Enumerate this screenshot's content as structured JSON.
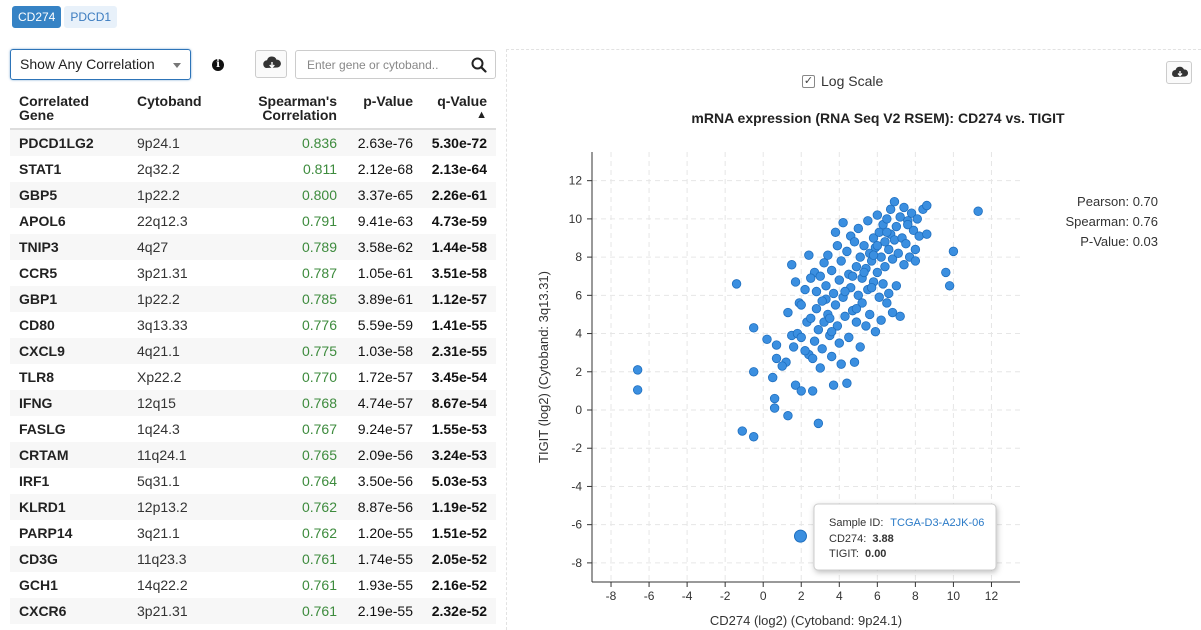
{
  "gene_tabs": [
    {
      "label": "CD274",
      "active": true
    },
    {
      "label": "PDCD1",
      "active": false
    }
  ],
  "toolbar": {
    "correlation_filter": "Show Any Correlation",
    "info_icon": "info-circle-icon",
    "download_icon": "cloud-download-icon",
    "search_placeholder": "Enter gene or cytoband..",
    "search_icon": "search-icon"
  },
  "table": {
    "headers": {
      "gene": "Correlated Gene",
      "cytoband": "Cytoband",
      "spearman": "Spearman's Correlation",
      "pvalue": "p-Value",
      "qvalue": "q-Value",
      "qvalue_sort": "▲"
    },
    "rows": [
      {
        "gene": "PDCD1LG2",
        "cytoband": "9p24.1",
        "spearman": "0.836",
        "pvalue": "2.63e-76",
        "qvalue": "5.30e-72"
      },
      {
        "gene": "STAT1",
        "cytoband": "2q32.2",
        "spearman": "0.811",
        "pvalue": "2.12e-68",
        "qvalue": "2.13e-64"
      },
      {
        "gene": "GBP5",
        "cytoband": "1p22.2",
        "spearman": "0.800",
        "pvalue": "3.37e-65",
        "qvalue": "2.26e-61"
      },
      {
        "gene": "APOL6",
        "cytoband": "22q12.3",
        "spearman": "0.791",
        "pvalue": "9.41e-63",
        "qvalue": "4.73e-59"
      },
      {
        "gene": "TNIP3",
        "cytoband": "4q27",
        "spearman": "0.789",
        "pvalue": "3.58e-62",
        "qvalue": "1.44e-58"
      },
      {
        "gene": "CCR5",
        "cytoband": "3p21.31",
        "spearman": "0.787",
        "pvalue": "1.05e-61",
        "qvalue": "3.51e-58"
      },
      {
        "gene": "GBP1",
        "cytoband": "1p22.2",
        "spearman": "0.785",
        "pvalue": "3.89e-61",
        "qvalue": "1.12e-57"
      },
      {
        "gene": "CD80",
        "cytoband": "3q13.33",
        "spearman": "0.776",
        "pvalue": "5.59e-59",
        "qvalue": "1.41e-55"
      },
      {
        "gene": "CXCL9",
        "cytoband": "4q21.1",
        "spearman": "0.775",
        "pvalue": "1.03e-58",
        "qvalue": "2.31e-55"
      },
      {
        "gene": "TLR8",
        "cytoband": "Xp22.2",
        "spearman": "0.770",
        "pvalue": "1.72e-57",
        "qvalue": "3.45e-54"
      },
      {
        "gene": "IFNG",
        "cytoband": "12q15",
        "spearman": "0.768",
        "pvalue": "4.74e-57",
        "qvalue": "8.67e-54"
      },
      {
        "gene": "FASLG",
        "cytoband": "1q24.3",
        "spearman": "0.767",
        "pvalue": "9.24e-57",
        "qvalue": "1.55e-53"
      },
      {
        "gene": "CRTAM",
        "cytoband": "11q24.1",
        "spearman": "0.765",
        "pvalue": "2.09e-56",
        "qvalue": "3.24e-53"
      },
      {
        "gene": "IRF1",
        "cytoband": "5q31.1",
        "spearman": "0.764",
        "pvalue": "3.50e-56",
        "qvalue": "5.03e-53"
      },
      {
        "gene": "KLRD1",
        "cytoband": "12p13.2",
        "spearman": "0.762",
        "pvalue": "8.87e-56",
        "qvalue": "1.19e-52"
      },
      {
        "gene": "PARP14",
        "cytoband": "3q21.1",
        "spearman": "0.762",
        "pvalue": "1.20e-55",
        "qvalue": "1.51e-52"
      },
      {
        "gene": "CD3G",
        "cytoband": "11q23.3",
        "spearman": "0.761",
        "pvalue": "1.74e-55",
        "qvalue": "2.05e-52"
      },
      {
        "gene": "GCH1",
        "cytoband": "14q22.2",
        "spearman": "0.761",
        "pvalue": "1.93e-55",
        "qvalue": "2.16e-52"
      },
      {
        "gene": "CXCR6",
        "cytoband": "3p21.31",
        "spearman": "0.761",
        "pvalue": "2.19e-55",
        "qvalue": "2.32e-52"
      }
    ]
  },
  "plot_controls": {
    "log_scale_label": "Log Scale",
    "log_scale_checked": true,
    "download_icon": "cloud-download-icon"
  },
  "chart_data": {
    "type": "scatter",
    "title": "mRNA expression (RNA Seq V2 RSEM): CD274 vs. TIGIT",
    "xlabel": "CD274 (log2) (Cytoband: 9p24.1)",
    "ylabel": "TIGIT (log2) (Cytoband: 3q13.31)",
    "xlim": [
      -9,
      13.5
    ],
    "ylim": [
      -9,
      13.5
    ],
    "xticks": [
      -8,
      -6,
      -4,
      -2,
      0,
      2,
      4,
      6,
      8,
      10,
      12
    ],
    "yticks": [
      -8,
      -6,
      -4,
      -2,
      0,
      2,
      4,
      6,
      8,
      10,
      12
    ],
    "grid": true,
    "point_color": "#3b8fe0",
    "stats": {
      "pearson": "Pearson: 0.70",
      "spearman": "Spearman: 0.76",
      "pvalue": "P-Value: 0.03"
    },
    "points": [
      {
        "x": -6.6,
        "y": 2.1
      },
      {
        "x": -6.6,
        "y": 1.05
      },
      {
        "x": -1.4,
        "y": 6.6
      },
      {
        "x": -1.1,
        "y": -1.1
      },
      {
        "x": -0.5,
        "y": -1.4
      },
      {
        "x": -0.5,
        "y": 2.0
      },
      {
        "x": -0.5,
        "y": 4.3
      },
      {
        "x": 0.2,
        "y": 3.7
      },
      {
        "x": 0.5,
        "y": 1.7
      },
      {
        "x": 0.6,
        "y": 0.6
      },
      {
        "x": 0.6,
        "y": 0.1
      },
      {
        "x": 0.7,
        "y": 3.4
      },
      {
        "x": 0.7,
        "y": 2.7
      },
      {
        "x": 1.2,
        "y": 2.5
      },
      {
        "x": 1.3,
        "y": 5.1
      },
      {
        "x": 1.3,
        "y": -0.3
      },
      {
        "x": 1.5,
        "y": 7.6
      },
      {
        "x": 1.5,
        "y": 3.9
      },
      {
        "x": 1.7,
        "y": 1.3
      },
      {
        "x": 1.7,
        "y": 6.7
      },
      {
        "x": 1.8,
        "y": 4.0
      },
      {
        "x": 1.9,
        "y": 5.6
      },
      {
        "x": 2.0,
        "y": 1.0
      },
      {
        "x": 2.0,
        "y": 3.8
      },
      {
        "x": 2.0,
        "y": 5.5
      },
      {
        "x": 2.2,
        "y": 6.3
      },
      {
        "x": 2.3,
        "y": 4.6
      },
      {
        "x": 2.4,
        "y": 8.1
      },
      {
        "x": 2.4,
        "y": 2.9
      },
      {
        "x": 2.5,
        "y": 4.8
      },
      {
        "x": 2.6,
        "y": 1.0
      },
      {
        "x": 2.6,
        "y": 2.7
      },
      {
        "x": 2.7,
        "y": 7.2
      },
      {
        "x": 2.7,
        "y": 3.6
      },
      {
        "x": 2.8,
        "y": 5.3
      },
      {
        "x": 2.8,
        "y": 6.2
      },
      {
        "x": 2.9,
        "y": 4.2
      },
      {
        "x": 2.9,
        "y": -0.7
      },
      {
        "x": 3.0,
        "y": 7.0
      },
      {
        "x": 3.0,
        "y": 2.2
      },
      {
        "x": 3.1,
        "y": 3.2
      },
      {
        "x": 3.2,
        "y": 7.7
      },
      {
        "x": 3.2,
        "y": 4.6
      },
      {
        "x": 3.3,
        "y": 6.5
      },
      {
        "x": 3.3,
        "y": 5.8
      },
      {
        "x": 3.4,
        "y": 8.1
      },
      {
        "x": 3.4,
        "y": 5.0
      },
      {
        "x": 3.5,
        "y": 3.9
      },
      {
        "x": 3.6,
        "y": 2.8
      },
      {
        "x": 3.6,
        "y": 7.3
      },
      {
        "x": 3.7,
        "y": 6.1
      },
      {
        "x": 3.7,
        "y": 1.3
      },
      {
        "x": 3.8,
        "y": 9.3
      },
      {
        "x": 3.8,
        "y": 5.5
      },
      {
        "x": 3.9,
        "y": 4.4
      },
      {
        "x": 3.9,
        "y": 8.6
      },
      {
        "x": 4.0,
        "y": 3.5
      },
      {
        "x": 4.0,
        "y": 6.8
      },
      {
        "x": 4.1,
        "y": 7.8
      },
      {
        "x": 4.1,
        "y": 2.4
      },
      {
        "x": 4.2,
        "y": 5.9
      },
      {
        "x": 4.2,
        "y": 9.8
      },
      {
        "x": 4.3,
        "y": 4.9
      },
      {
        "x": 4.4,
        "y": 8.3
      },
      {
        "x": 4.4,
        "y": 1.4
      },
      {
        "x": 4.5,
        "y": 7.1
      },
      {
        "x": 4.5,
        "y": 3.8
      },
      {
        "x": 4.6,
        "y": 6.4
      },
      {
        "x": 4.6,
        "y": 9.1
      },
      {
        "x": 4.7,
        "y": 5.2
      },
      {
        "x": 4.8,
        "y": 8.8
      },
      {
        "x": 4.8,
        "y": 2.5
      },
      {
        "x": 4.9,
        "y": 7.5
      },
      {
        "x": 4.9,
        "y": 4.6
      },
      {
        "x": 5.0,
        "y": 6.0
      },
      {
        "x": 5.0,
        "y": 9.5
      },
      {
        "x": 5.1,
        "y": 8.0
      },
      {
        "x": 5.1,
        "y": 3.3
      },
      {
        "x": 5.2,
        "y": 6.9
      },
      {
        "x": 5.2,
        "y": 5.6
      },
      {
        "x": 5.3,
        "y": 8.6
      },
      {
        "x": 5.4,
        "y": 4.4
      },
      {
        "x": 5.4,
        "y": 7.4
      },
      {
        "x": 5.5,
        "y": 9.9
      },
      {
        "x": 5.5,
        "y": 6.3
      },
      {
        "x": 5.6,
        "y": 8.2
      },
      {
        "x": 5.6,
        "y": 5.0
      },
      {
        "x": 5.7,
        "y": 7.8
      },
      {
        "x": 5.8,
        "y": 9.0
      },
      {
        "x": 5.8,
        "y": 6.7
      },
      {
        "x": 5.9,
        "y": 4.1
      },
      {
        "x": 5.9,
        "y": 8.5
      },
      {
        "x": 6.0,
        "y": 10.2
      },
      {
        "x": 6.0,
        "y": 7.2
      },
      {
        "x": 6.1,
        "y": 5.9
      },
      {
        "x": 6.1,
        "y": 9.3
      },
      {
        "x": 6.2,
        "y": 8.0
      },
      {
        "x": 6.2,
        "y": 4.7
      },
      {
        "x": 6.3,
        "y": 6.6
      },
      {
        "x": 6.3,
        "y": 9.7
      },
      {
        "x": 6.4,
        "y": 8.8
      },
      {
        "x": 6.4,
        "y": 7.5
      },
      {
        "x": 6.5,
        "y": 10.0
      },
      {
        "x": 6.5,
        "y": 5.6
      },
      {
        "x": 6.6,
        "y": 8.4
      },
      {
        "x": 6.6,
        "y": 6.1
      },
      {
        "x": 6.7,
        "y": 9.2
      },
      {
        "x": 6.7,
        "y": 10.5
      },
      {
        "x": 6.8,
        "y": 7.9
      },
      {
        "x": 6.8,
        "y": 5.1
      },
      {
        "x": 6.9,
        "y": 8.9
      },
      {
        "x": 6.9,
        "y": 10.9
      },
      {
        "x": 7.0,
        "y": 9.6
      },
      {
        "x": 7.0,
        "y": 6.5
      },
      {
        "x": 7.1,
        "y": 8.2
      },
      {
        "x": 7.2,
        "y": 10.1
      },
      {
        "x": 7.2,
        "y": 4.9
      },
      {
        "x": 7.3,
        "y": 9.0
      },
      {
        "x": 7.4,
        "y": 7.6
      },
      {
        "x": 7.4,
        "y": 10.6
      },
      {
        "x": 7.5,
        "y": 8.7
      },
      {
        "x": 7.6,
        "y": 9.9
      },
      {
        "x": 7.7,
        "y": 8.0
      },
      {
        "x": 7.8,
        "y": 10.3
      },
      {
        "x": 7.9,
        "y": 9.4
      },
      {
        "x": 8.0,
        "y": 8.4
      },
      {
        "x": 8.1,
        "y": 10.0
      },
      {
        "x": 8.2,
        "y": 9.1
      },
      {
        "x": 8.4,
        "y": 10.5
      },
      {
        "x": 8.6,
        "y": 9.2
      },
      {
        "x": 8.6,
        "y": 10.7
      },
      {
        "x": 8.0,
        "y": 7.8
      },
      {
        "x": 9.6,
        "y": 7.2
      },
      {
        "x": 9.8,
        "y": 6.5
      },
      {
        "x": 10.0,
        "y": 8.3
      },
      {
        "x": 11.3,
        "y": 10.4
      },
      {
        "x": 3.6,
        "y": 4.1
      },
      {
        "x": 4.3,
        "y": 6.2
      },
      {
        "x": 5.3,
        "y": 7.2
      },
      {
        "x": 6.0,
        "y": 8.6
      },
      {
        "x": 4.7,
        "y": 7.0
      },
      {
        "x": 5.7,
        "y": 6.4
      },
      {
        "x": 3.1,
        "y": 5.7
      },
      {
        "x": 2.5,
        "y": 6.9
      },
      {
        "x": 7.6,
        "y": 9.7
      },
      {
        "x": 6.5,
        "y": 9.3
      },
      {
        "x": 5.8,
        "y": 8.1
      },
      {
        "x": 4.9,
        "y": 5.3
      },
      {
        "x": 3.5,
        "y": 4.8
      },
      {
        "x": 2.2,
        "y": 3.1
      },
      {
        "x": 1.6,
        "y": 3.3
      },
      {
        "x": 1.0,
        "y": 2.3
      }
    ],
    "highlight": {
      "x": 1.96,
      "y": -6.6
    },
    "tooltip": {
      "sample_label": "Sample ID:",
      "sample_id": "TCGA-D3-A2JK-06",
      "line2_label": "CD274:",
      "line2_value": "3.88",
      "line3_label": "TIGIT:",
      "line3_value": "0.00"
    }
  }
}
